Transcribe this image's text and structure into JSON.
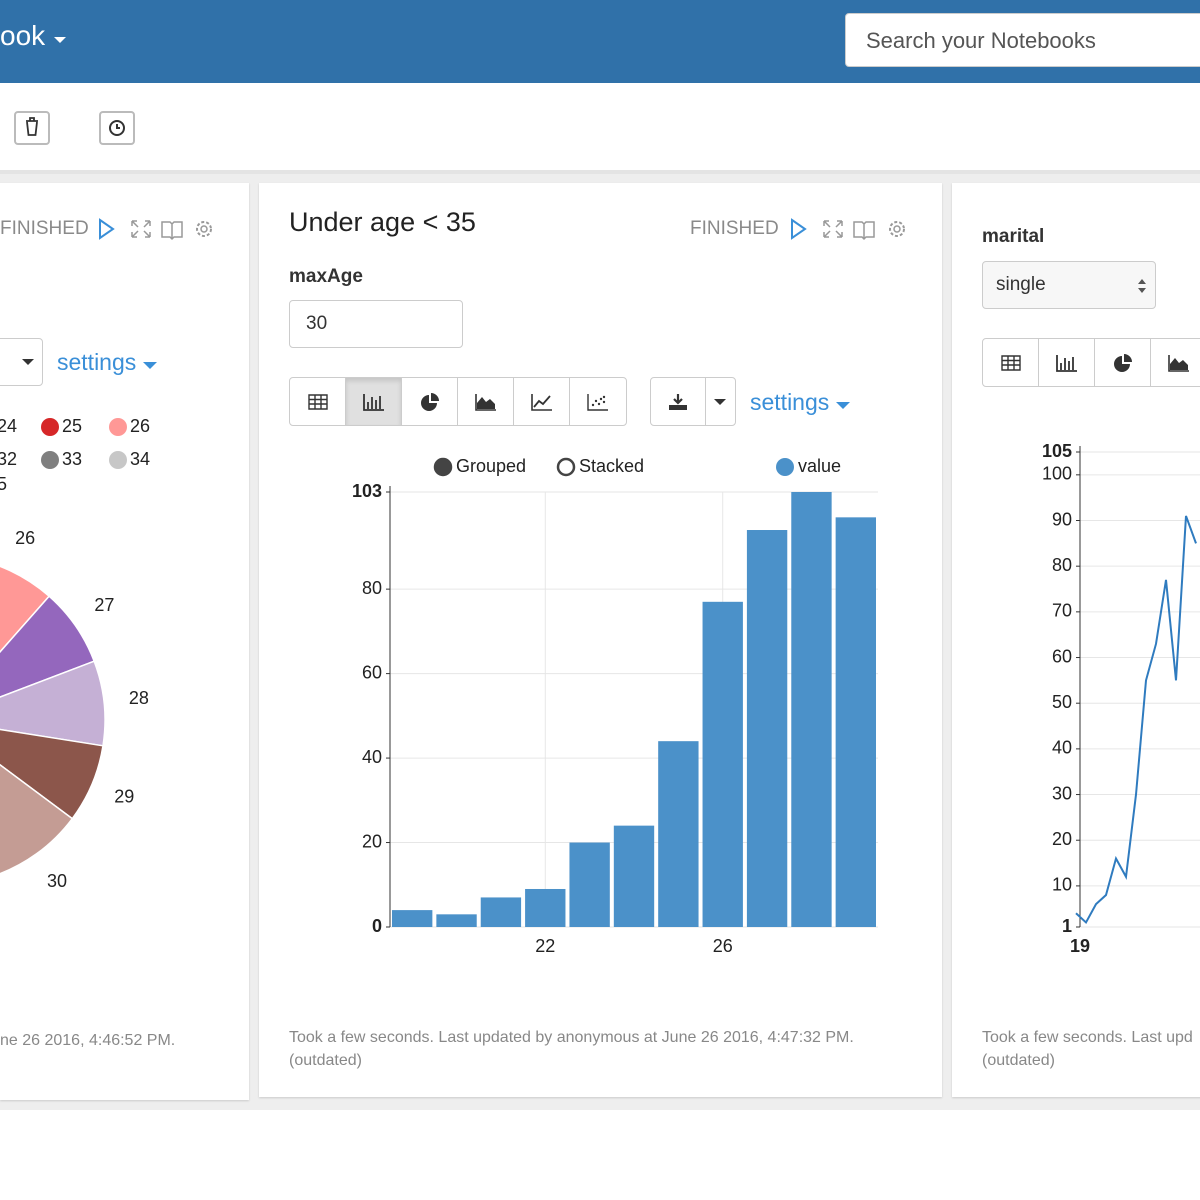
{
  "header": {
    "brand": "ook",
    "search_placeholder": "Search your Notebooks"
  },
  "paragraphs": [
    {
      "status": "FINISHED",
      "settings": "settings",
      "footer": "ne 26 2016, 4:46:52 PM."
    },
    {
      "title": "Under age < 35",
      "status": "FINISHED",
      "param_label": "maxAge",
      "param_value": "30",
      "settings": "settings",
      "footer": "Took a few seconds. Last updated by anonymous at June 26 2016, 4:47:32 PM.",
      "footer_note": "(outdated)"
    },
    {
      "param_label": "marital",
      "param_value": "single",
      "footer": "Took a few seconds. Last upd",
      "footer_note": "(outdated)"
    }
  ],
  "chart_data": [
    {
      "type": "pie",
      "legend": {
        "names": [
          "24",
          "25",
          "26",
          "32",
          "33",
          "34",
          "5"
        ],
        "colors": [
          "#98df8a",
          "#d62728",
          "#ff9896",
          "#f7b6d2",
          "#7f7f7f",
          "#c7c7c7",
          "#bcbd22"
        ]
      },
      "categories": [
        "26",
        "27",
        "28",
        "29",
        "30"
      ],
      "values": [
        9,
        7.7,
        8.3,
        7.7,
        9.7
      ],
      "colors": [
        "#ff9896",
        "#9467bd",
        "#c5b0d5",
        "#8c564b",
        "#c49c94"
      ]
    },
    {
      "type": "bar",
      "modes": [
        "Grouped",
        "Stacked"
      ],
      "categories": [
        null,
        null,
        null,
        22,
        null,
        null,
        null,
        26,
        null,
        null,
        null
      ],
      "series": [
        {
          "name": "value",
          "color": "#4b91c9",
          "values": [
            4,
            3,
            7,
            9,
            20,
            24,
            44,
            77,
            94,
            103,
            97
          ]
        }
      ],
      "ylim": [
        0,
        103
      ],
      "yticks": [
        0,
        20,
        40,
        60,
        80,
        103
      ],
      "grid": true
    },
    {
      "type": "line",
      "categories": [
        19,
        null,
        null,
        null,
        null,
        null,
        null,
        null,
        null,
        null,
        null,
        null,
        null
      ],
      "series": [
        {
          "color": "#2f7bbf",
          "values": [
            4,
            2,
            6,
            8,
            16,
            12,
            30,
            55,
            63,
            77,
            55,
            91,
            85
          ]
        }
      ],
      "ylim": [
        1,
        105
      ],
      "yticks": [
        1,
        10,
        20,
        30,
        40,
        50,
        60,
        70,
        80,
        90,
        100,
        105
      ],
      "grid": true
    }
  ]
}
